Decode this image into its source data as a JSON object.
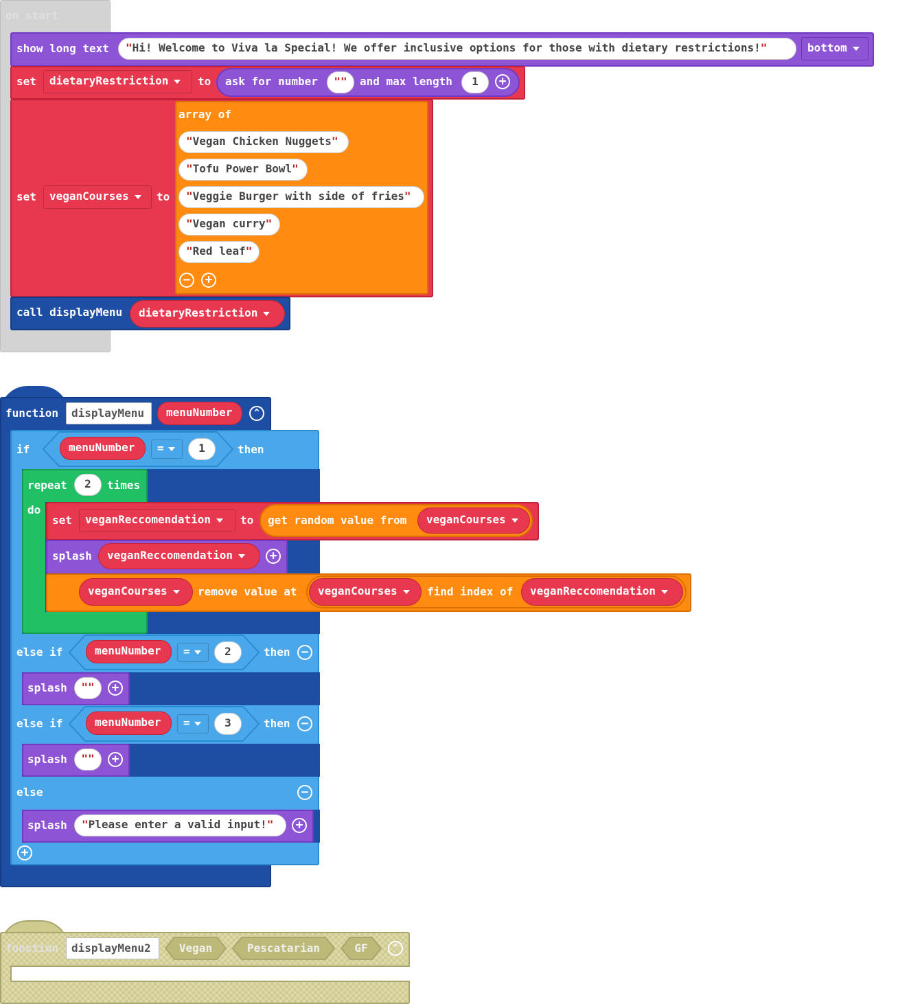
{
  "on_start": {
    "hat_label": "on start",
    "show_long_text": {
      "label": "show long text",
      "text": "Hi! Welcome to Viva la Special! We offer inclusive options for those with dietary restrictions!",
      "position": "bottom"
    },
    "set_dietary": {
      "set_label": "set",
      "variable": "dietaryRestriction",
      "to_label": "to",
      "ask_label": "ask for number",
      "prompt": "",
      "max_label": "and max length",
      "max_value": "1"
    },
    "set_vegan": {
      "set_label": "set",
      "variable": "veganCourses",
      "to_label": "to",
      "array_label": "array of",
      "items": [
        "Vegan Chicken Nuggets",
        "Tofu Power Bowl",
        "Veggie Burger with side of fries",
        "Vegan curry",
        "Red leaf"
      ]
    },
    "call_display": {
      "label": "call displayMenu",
      "argument": "dietaryRestriction"
    }
  },
  "function1": {
    "keyword": "function",
    "name": "displayMenu",
    "param": "menuNumber",
    "if_row": {
      "if_label": "if",
      "var": "menuNumber",
      "op": "=",
      "value": "1",
      "then_label": "then"
    },
    "repeat": {
      "label": "repeat",
      "count": "2",
      "times_label": "times",
      "do_label": "do"
    },
    "set_rec": {
      "set_label": "set",
      "variable": "veganReccomendation",
      "to_label": "to",
      "get_label": "get random value from",
      "source": "veganCourses"
    },
    "splash1": {
      "label": "splash",
      "variable": "veganReccomendation"
    },
    "remove": {
      "list": "veganCourses",
      "remove_label": "remove value at",
      "list2": "veganCourses",
      "find_label": "find index of",
      "target": "veganReccomendation"
    },
    "elseif1": {
      "label": "else if",
      "var": "menuNumber",
      "op": "=",
      "value": "2",
      "then_label": "then"
    },
    "splash2": {
      "label": "splash",
      "text": ""
    },
    "elseif2": {
      "label": "else if",
      "var": "menuNumber",
      "op": "=",
      "value": "3",
      "then_label": "then"
    },
    "splash3": {
      "label": "splash",
      "text": ""
    },
    "else_label": "else",
    "splash4": {
      "label": "splash",
      "text": "Please enter a valid input!"
    }
  },
  "function2": {
    "keyword": "function",
    "name": "displayMenu2",
    "params": [
      "Vegan",
      "Pescatarian",
      "GF"
    ]
  },
  "colors": {
    "looks": "#8e54d6",
    "variables": "#e8384f",
    "arrays": "#ff8c11",
    "functions": "#1e4ea3",
    "logic": "#4aa8ea",
    "loops": "#22c065",
    "disabled": "#cfcb8e"
  }
}
